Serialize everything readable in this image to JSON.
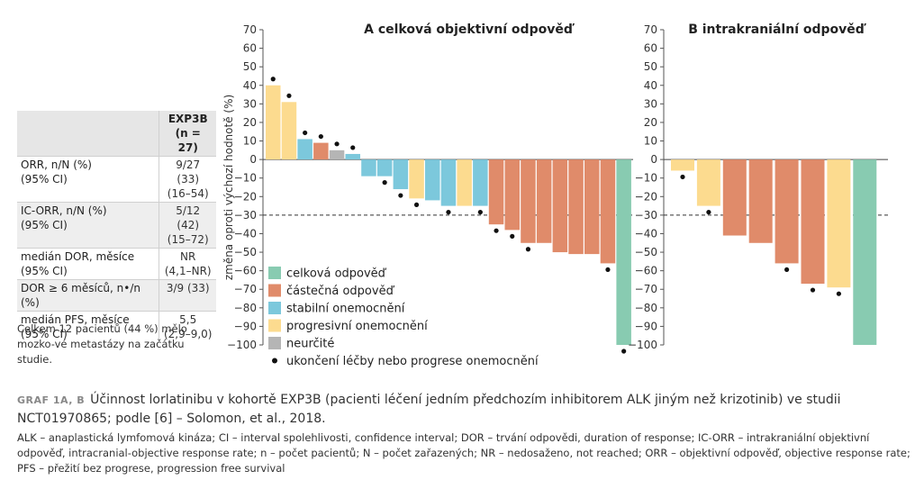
{
  "table": {
    "header": "EXP3B",
    "header_n": "(n = 27)",
    "rows": [
      {
        "label": "ORR, n/N (%)",
        "value": "9/27 (33)",
        "sublabel": "(95% CI)",
        "subvalue": "(16–54)"
      },
      {
        "label": "IC-ORR, n/N (%)",
        "value": "5/12 (42)",
        "sublabel": "(95% CI)",
        "subvalue": "(15–72)"
      },
      {
        "label": "medián DOR, měsíce",
        "value": "NR",
        "sublabel": "(95% CI)",
        "subvalue": "(4,1–NR)"
      },
      {
        "label": "DOR ≥ 6 měsíců, n•/n (%)",
        "value": "3/9 (33)",
        "sublabel": "",
        "subvalue": ""
      },
      {
        "label": "medián PFS, měsíce",
        "value": "5,5",
        "sublabel": "(95% CI)",
        "subvalue": "(2,9–9,0)"
      }
    ]
  },
  "note": "Celkem 12 pacientů (44 %) mělo mozko-vé metastázy na začátku studie.",
  "caption": {
    "label": "GRAF 1A, B",
    "text": "Účinnost lorlatinibu v kohortě EXP3B (pacienti léčení jedním předchozím inhibitorem ALK jiným než krizotinib) ve studii NCT01970865; podle [6] – Solomon, et al., 2018."
  },
  "footnote": "ALK – anaplastická lymfomová kináza; CI – interval spolehlivosti, confidence interval; DOR – trvání odpovědi, duration of response; IC-ORR – intrakraniální objektivní odpověď, intracranial-objective response rate; n – počet pacientů; N – počet zařazených; NR – nedosaženo, not reached; ORR – objektivní odpověď, objective response rate; PFS – přežití bez progrese, progression free survival",
  "colors": {
    "response": "#88cbb1",
    "partial": "#e08b6a",
    "stable": "#7cc8dc",
    "progressive": "#fcdb8f",
    "undetermined": "#b5b5b5"
  },
  "chart_data": [
    {
      "type": "bar",
      "title": "A  celková objektivní odpověď",
      "ylabel": "změna oproti výchozí hodnotě (%)",
      "ylim": [
        -100,
        70
      ],
      "yticks": [
        70,
        60,
        50,
        40,
        30,
        20,
        10,
        0,
        -10,
        -20,
        -30,
        -40,
        -50,
        -60,
        -70,
        -80,
        -90,
        -100
      ],
      "reference_line": -30,
      "values": [
        40,
        31,
        11,
        9,
        5,
        3,
        -9,
        -9,
        -16,
        -21,
        -22,
        -25,
        -25,
        -25,
        -35,
        -38,
        -45,
        -45,
        -50,
        -51,
        -51,
        -56,
        -100
      ],
      "statuses": [
        "progressive",
        "progressive",
        "stable",
        "partial",
        "undetermined",
        "stable",
        "stable",
        "stable",
        "stable",
        "progressive",
        "stable",
        "stable",
        "progressive",
        "stable",
        "partial",
        "partial",
        "partial",
        "partial",
        "partial",
        "partial",
        "partial",
        "partial",
        "response"
      ],
      "discontinued": [
        true,
        true,
        true,
        true,
        true,
        true,
        false,
        true,
        true,
        true,
        false,
        true,
        false,
        true,
        true,
        true,
        true,
        false,
        false,
        false,
        false,
        true,
        true
      ],
      "legend": [
        {
          "key": "response",
          "label": "celková odpověď"
        },
        {
          "key": "partial",
          "label": "částečná odpověď"
        },
        {
          "key": "stable",
          "label": "stabilní onemocnění"
        },
        {
          "key": "progressive",
          "label": "progresivní onemocnění"
        },
        {
          "key": "undetermined",
          "label": "neurčité"
        },
        {
          "key": "discontinued",
          "label": "ukončení léčby nebo progrese onemocnění"
        }
      ]
    },
    {
      "type": "bar",
      "title": "B  intrakraniální odpověď",
      "ylim": [
        -100,
        70
      ],
      "yticks": [
        70,
        60,
        50,
        40,
        30,
        20,
        10,
        0,
        -10,
        -20,
        -30,
        -40,
        -50,
        -60,
        -70,
        -80,
        -90,
        -100
      ],
      "reference_line": -30,
      "values": [
        -6,
        -25,
        -41,
        -45,
        -56,
        -67,
        -69,
        -100
      ],
      "statuses": [
        "progressive",
        "progressive",
        "partial",
        "partial",
        "partial",
        "partial",
        "progressive",
        "response"
      ],
      "discontinued": [
        true,
        true,
        false,
        false,
        true,
        true,
        true,
        false
      ]
    }
  ]
}
